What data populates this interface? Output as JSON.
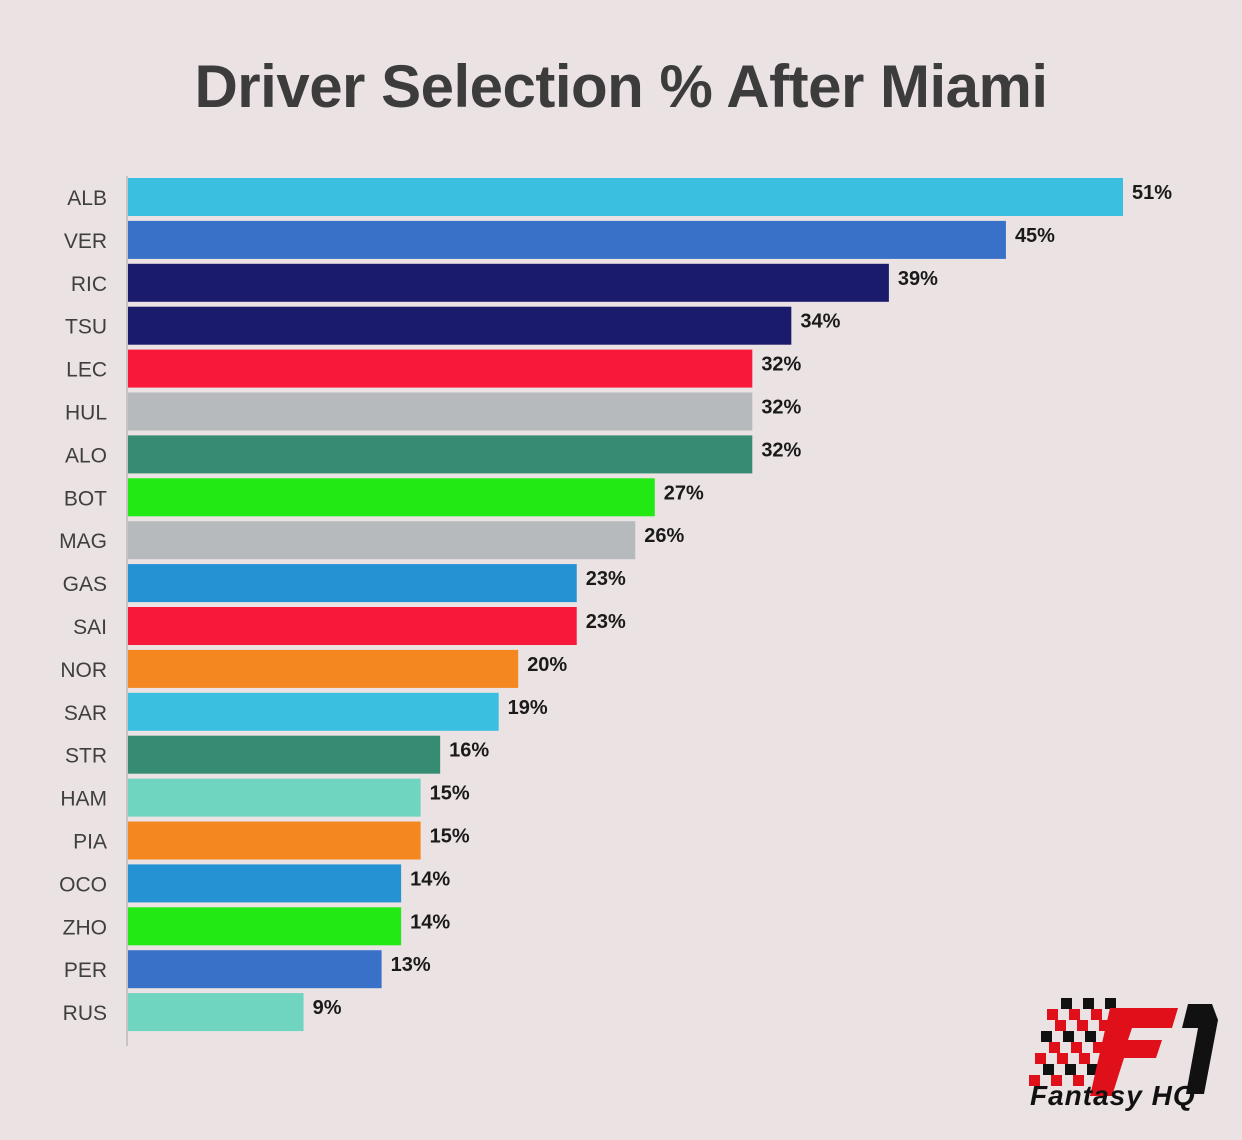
{
  "chart_data": {
    "type": "bar",
    "orientation": "horizontal",
    "title": "Driver Selection % After Miami",
    "xlabel": "",
    "ylabel": "",
    "xlim": [
      0,
      51
    ],
    "grid": false,
    "value_suffix": "%",
    "categories": [
      "ALB",
      "VER",
      "RIC",
      "TSU",
      "LEC",
      "HUL",
      "ALO",
      "BOT",
      "MAG",
      "GAS",
      "SAI",
      "NOR",
      "SAR",
      "STR",
      "HAM",
      "PIA",
      "OCO",
      "ZHO",
      "PER",
      "RUS"
    ],
    "values": [
      51,
      45,
      39,
      34,
      32,
      32,
      32,
      27,
      26,
      23,
      23,
      20,
      19,
      16,
      15,
      15,
      14,
      14,
      13,
      9
    ],
    "value_labels": [
      "51%",
      "45%",
      "39%",
      "34%",
      "32%",
      "32%",
      "32%",
      "27%",
      "26%",
      "23%",
      "23%",
      "20%",
      "19%",
      "16%",
      "15%",
      "15%",
      "14%",
      "14%",
      "13%",
      "9%"
    ],
    "colors": [
      "#3bbfe0",
      "#3a71c8",
      "#1b1b6b",
      "#1b1b6b",
      "#f8193a",
      "#b7babd",
      "#358c73",
      "#22e814",
      "#b7babd",
      "#2592d4",
      "#f8193a",
      "#f58720",
      "#3bbfe0",
      "#358c73",
      "#6fd5c1",
      "#f58720",
      "#2592d4",
      "#22e814",
      "#3a71c8",
      "#6fd5c1"
    ]
  },
  "logo": {
    "text": "Fantasy HQ",
    "mark": "F1",
    "colors": [
      "#e0101a",
      "#111111"
    ]
  }
}
